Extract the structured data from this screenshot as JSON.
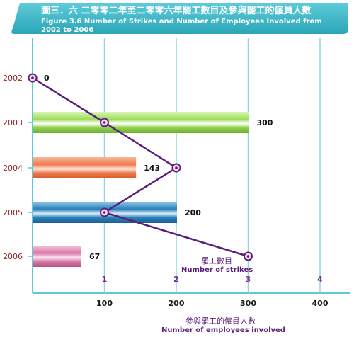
{
  "chart_data": {
    "type": "bar",
    "title": "圖三．六  二零零二年至二零零六年罷工數目及參與罷工的僱員人數",
    "subtitle_lines": [
      "Figure 3.6  Number of Strikes and Number of Employees Involved from",
      "2002 to 2006"
    ],
    "categories": [
      "2002",
      "2003",
      "2004",
      "2005",
      "2006"
    ],
    "series": [
      {
        "kind": "bar",
        "values": [
          0,
          300,
          143,
          200,
          67
        ],
        "data_labels": [
          "0",
          "300",
          "143",
          "200",
          "67"
        ]
      },
      {
        "kind": "line",
        "values": [
          0,
          1,
          2,
          1,
          3
        ]
      }
    ],
    "bar_colors": [
      "#e8e8e8",
      "#8fd14a",
      "#f07a4e",
      "#2a7fb8",
      "#d977a6"
    ],
    "line_color": "#5b1f7a",
    "axis_employees": {
      "label_cn": "參與罷工的僱員人數",
      "label_en": "Number of employees involved",
      "ticks": [
        "100",
        "200",
        "300",
        "400"
      ],
      "range": [
        0,
        400
      ]
    },
    "axis_strikes": {
      "label_cn": "罷工數目",
      "label_en": "Number of strikes",
      "ticks": [
        "1",
        "2",
        "3",
        "4"
      ],
      "range": [
        0,
        4
      ]
    },
    "grid": true,
    "colors": {
      "header": "#3fb8c8",
      "gridline": "#8fd6e0",
      "axis": "#5fc8d6"
    }
  }
}
